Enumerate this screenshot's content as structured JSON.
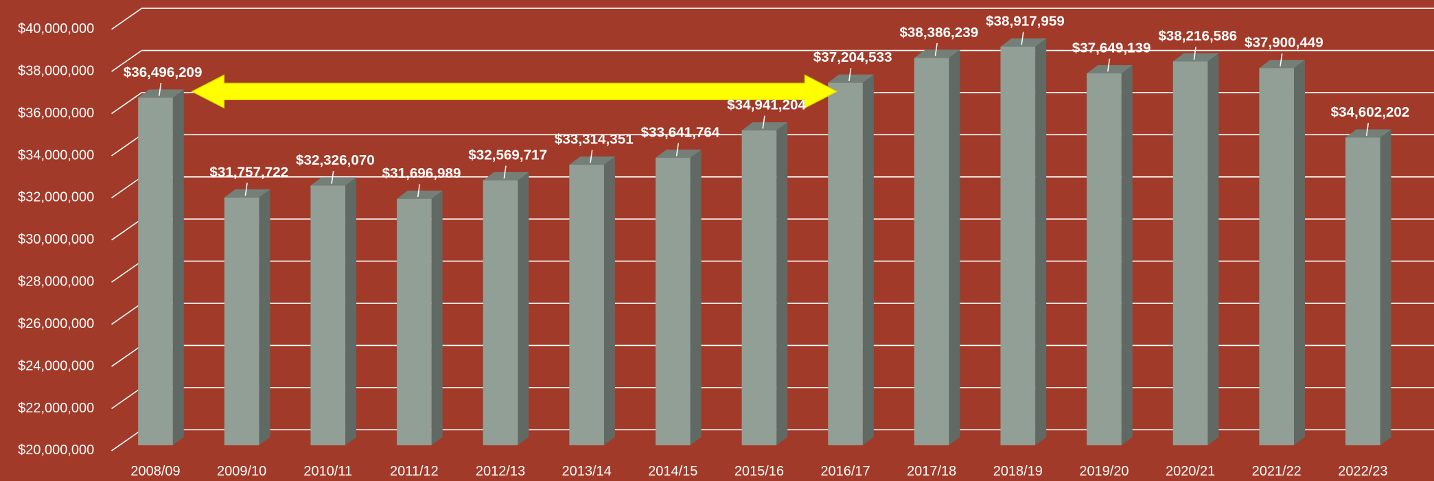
{
  "chart_data": {
    "type": "bar3d",
    "categories": [
      "2008/09",
      "2009/10",
      "2010/11",
      "2011/12",
      "2012/13",
      "2013/14",
      "2014/15",
      "2015/16",
      "2016/17",
      "2017/18",
      "2018/19",
      "2019/20",
      "2020/21",
      "2021/22",
      "2022/23"
    ],
    "values": [
      36496209,
      31757722,
      32326070,
      31696989,
      32569717,
      33314351,
      33641764,
      34941204,
      37204533,
      38386239,
      38917959,
      37649139,
      38216586,
      37900449,
      34602202
    ],
    "value_labels": [
      "$36,496,209",
      "$31,757,722",
      "$32,326,070",
      "$31,696,989",
      "$32,569,717",
      "$33,314,351",
      "$33,641,764",
      "$34,941,204",
      "$37,204,533",
      "$38,386,239",
      "$38,917,959",
      "$37,649,139",
      "$38,216,586",
      "$37,900,449",
      "$34,602,202"
    ],
    "color": "#919f96",
    "ylim": [
      20000000,
      40000000
    ],
    "yticks": [
      {
        "value": 20000000,
        "label": "$20,000,000"
      },
      {
        "value": 22000000,
        "label": "$22,000,000"
      },
      {
        "value": 24000000,
        "label": "$24,000,000"
      },
      {
        "value": 26000000,
        "label": "$26,000,000"
      },
      {
        "value": 28000000,
        "label": "$28,000,000"
      },
      {
        "value": 30000000,
        "label": "$30,000,000"
      },
      {
        "value": 32000000,
        "label": "$32,000,000"
      },
      {
        "value": 34000000,
        "label": "$34,000,000"
      },
      {
        "value": 36000000,
        "label": "$36,000,000"
      },
      {
        "value": 38000000,
        "label": "$38,000,000"
      },
      {
        "value": 40000000,
        "label": "$40,000,000"
      }
    ],
    "grid": true
  }
}
